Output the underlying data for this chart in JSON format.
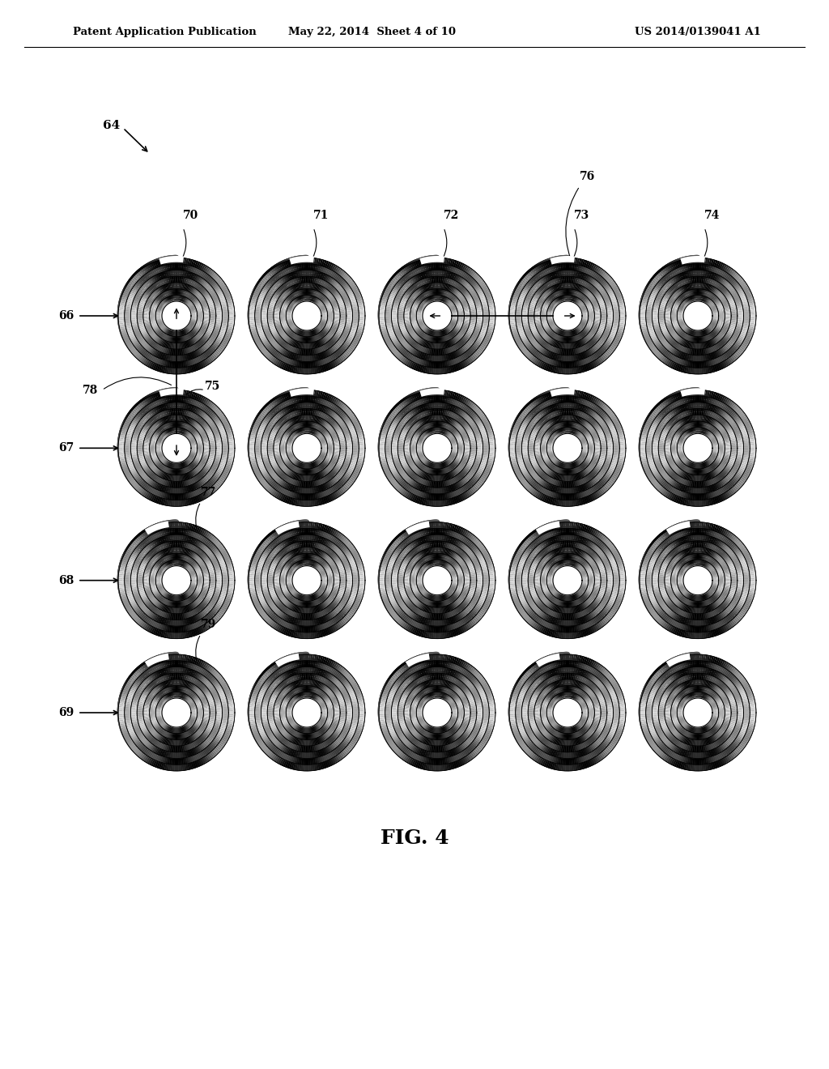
{
  "title_left": "Patent Application Publication",
  "title_mid": "May 22, 2014  Sheet 4 of 10",
  "title_right": "US 2014/0139041 A1",
  "fig_label": "FIG. 4",
  "background_color": "#ffffff",
  "grid_rows": 4,
  "grid_cols": 5,
  "num_turns": 7,
  "col_labels": [
    "70",
    "71",
    "72",
    "73",
    "74"
  ],
  "row_labels": [
    "66",
    "67",
    "68",
    "69"
  ],
  "coil_color_dark": "#1a1a1a",
  "coil_color_mid": "#555555",
  "coil_color_light": "#aaaaaa",
  "coil_color_vlight": "#cccccc"
}
